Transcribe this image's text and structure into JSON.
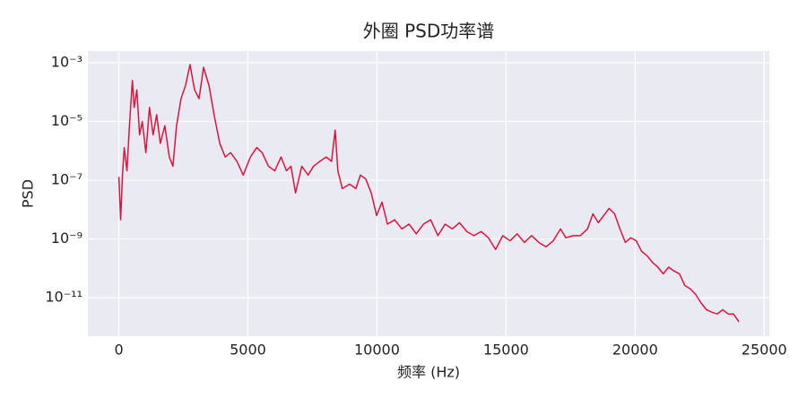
{
  "chart_data": {
    "type": "line",
    "title": "外圈 PSD功率谱",
    "xlabel": "频率 (Hz)",
    "ylabel": "PSD",
    "color": "#dc143c",
    "yscale": "log",
    "grid": true,
    "xlim": [
      -1200,
      25200
    ],
    "xticks": [
      0,
      5000,
      10000,
      15000,
      20000,
      25000
    ],
    "ylim": [
      0.0025,
      4.9e-13
    ],
    "yticks": [
      {
        "value": 0.001,
        "label": "10⁻³"
      },
      {
        "value": 1e-05,
        "label": "10⁻⁵"
      },
      {
        "value": 1e-07,
        "label": "10⁻⁷"
      },
      {
        "value": 1e-09,
        "label": "10⁻⁹"
      },
      {
        "value": 1e-11,
        "label": "10⁻¹¹"
      }
    ],
    "x": [
      0,
      70,
      140,
      210,
      314,
      420,
      524,
      594,
      698,
      803,
      908,
      1047,
      1187,
      1327,
      1466,
      1606,
      1781,
      1955,
      2095,
      2235,
      2409,
      2584,
      2758,
      2933,
      3107,
      3282,
      3492,
      3701,
      3911,
      4120,
      4330,
      4574,
      4818,
      5098,
      5342,
      5552,
      5796,
      6041,
      6285,
      6494,
      6669,
      6844,
      7088,
      7332,
      7542,
      7786,
      8031,
      8240,
      8380,
      8485,
      8659,
      8939,
      9183,
      9358,
      9567,
      9777,
      9986,
      10196,
      10405,
      10685,
      10964,
      11243,
      11522,
      11802,
      12081,
      12360,
      12640,
      12919,
      13198,
      13478,
      13757,
      14036,
      14316,
      14595,
      14874,
      15154,
      15433,
      15712,
      15992,
      16271,
      16550,
      16830,
      17109,
      17318,
      17598,
      17877,
      18156,
      18366,
      18575,
      18785,
      18994,
      19204,
      19413,
      19623,
      19832,
      20042,
      20251,
      20461,
      20670,
      20880,
      21089,
      21299,
      21508,
      21718,
      21927,
      22137,
      22346,
      22556,
      22765,
      22975,
      23184,
      23394,
      23603,
      23813,
      24022
    ],
    "values": [
      1.3e-07,
      4.5e-09,
      1.5e-07,
      1.3e-06,
      2.1e-07,
      1e-05,
      0.00025,
      3e-05,
      0.00012,
      3.5e-06,
      1e-05,
      8.7e-07,
      3e-05,
      3.5e-06,
      1.7e-05,
      1.8e-06,
      7.2e-06,
      6.2e-07,
      3e-07,
      7.2e-06,
      6e-05,
      0.00017,
      0.00087,
      0.00012,
      6e-05,
      0.0007,
      0.00017,
      1.5e-05,
      1.8e-06,
      6.2e-07,
      8.7e-07,
      4.4e-07,
      1.5e-07,
      6.2e-07,
      1.3e-06,
      8.7e-07,
      3e-07,
      2.1e-07,
      6.2e-07,
      2.1e-07,
      3e-07,
      3.7e-08,
      3e-07,
      1.5e-07,
      3e-07,
      4.4e-07,
      6.2e-07,
      4.4e-07,
      5.1e-06,
      2.1e-07,
      5.2e-08,
      7.4e-08,
      5.2e-08,
      1.5e-07,
      1.1e-07,
      3.7e-08,
      6.3e-09,
      1.8e-08,
      3.2e-09,
      4.5e-09,
      2.2e-09,
      3.2e-09,
      1.5e-09,
      3.2e-09,
      4.5e-09,
      1.3e-09,
      3.2e-09,
      2.2e-09,
      3.6e-09,
      1.8e-09,
      1.3e-09,
      1.8e-09,
      1.1e-09,
      4.4e-10,
      1.3e-09,
      8.7e-10,
      1.5e-09,
      7.6e-10,
      1.3e-09,
      7.6e-10,
      5.4e-10,
      8.7e-10,
      2.2e-09,
      1.1e-09,
      1.3e-09,
      1.3e-09,
      2.2e-09,
      7.2e-09,
      3.6e-09,
      6.3e-09,
      1.1e-08,
      7.2e-09,
      2.2e-09,
      7.6e-10,
      1.1e-09,
      8.7e-10,
      3.8e-10,
      2.7e-10,
      1.6e-10,
      1.1e-10,
      6.5e-11,
      1.1e-10,
      8.1e-11,
      6.5e-11,
      2.6e-11,
      2e-11,
      1.3e-11,
      6.6e-12,
      3.9e-12,
      3.2e-12,
      2.8e-12,
      3.9e-12,
      2.8e-12,
      2.8e-12,
      1.5e-12
    ]
  }
}
